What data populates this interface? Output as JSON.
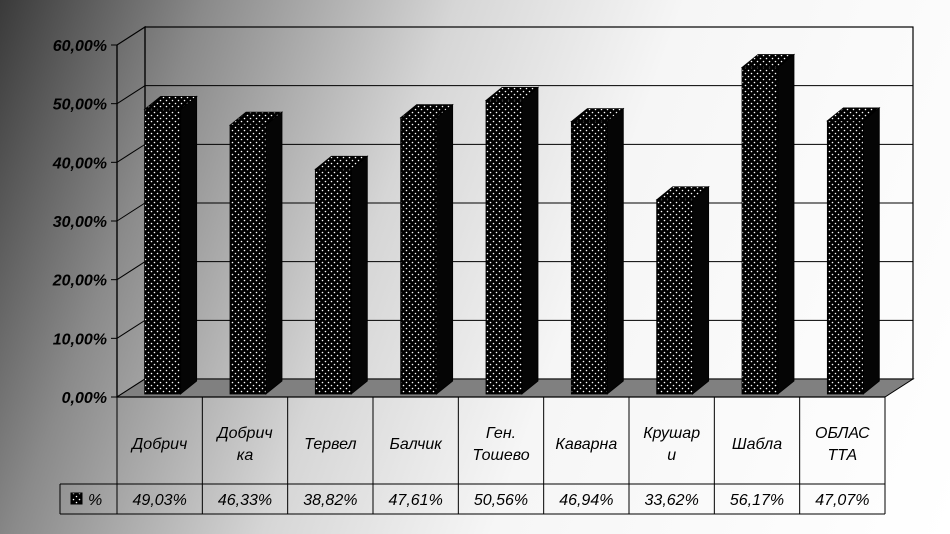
{
  "chart_data": {
    "type": "bar",
    "title": "",
    "xlabel": "",
    "ylabel": "",
    "categories": [
      "Добрич",
      "Добрич ка",
      "Тервел",
      "Балчик",
      "Ген. Тошево",
      "Каварна",
      "Крушар и",
      "Шабла",
      "ОБЛАС ТТА"
    ],
    "category_lines": [
      [
        "Добрич"
      ],
      [
        "Добрич",
        "ка"
      ],
      [
        "Тервел"
      ],
      [
        "Балчик"
      ],
      [
        "Ген.",
        "Тошево"
      ],
      [
        "Каварна"
      ],
      [
        "Крушар",
        "и"
      ],
      [
        "Шабла"
      ],
      [
        "ОБЛАС",
        "ТТА"
      ]
    ],
    "series": [
      {
        "name": "%",
        "values": [
          49.03,
          46.33,
          38.82,
          47.61,
          50.56,
          46.94,
          33.62,
          56.17,
          47.07
        ],
        "labels": [
          "49,03%",
          "46,33%",
          "38,82%",
          "47,61%",
          "50,56%",
          "46,94%",
          "33,62%",
          "56,17%",
          "47,07%"
        ]
      }
    ],
    "ylim": [
      0,
      60
    ],
    "y_ticks": [
      {
        "value": 0,
        "label": "0,00%"
      },
      {
        "value": 10,
        "label": "10,00%"
      },
      {
        "value": 20,
        "label": "20,00%"
      },
      {
        "value": 30,
        "label": "30,00%"
      },
      {
        "value": 40,
        "label": "40,00%"
      },
      {
        "value": 50,
        "label": "50,00%"
      },
      {
        "value": 60,
        "label": "60,00%"
      }
    ],
    "grid": true,
    "legend": "data-table",
    "style": "3d-column-dotted-black"
  }
}
